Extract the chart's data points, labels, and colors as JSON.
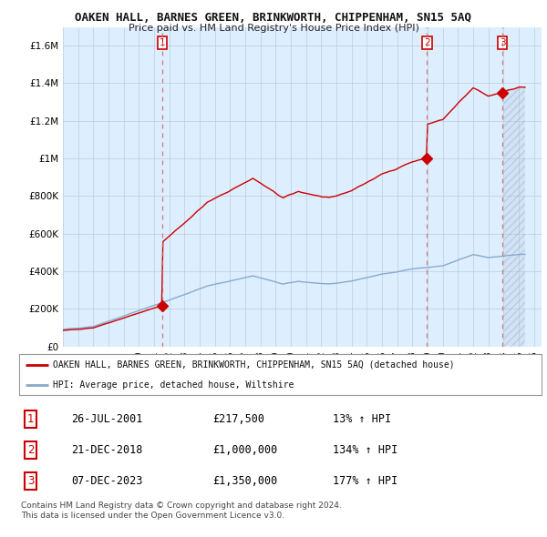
{
  "title": "OAKEN HALL, BARNES GREEN, BRINKWORTH, CHIPPENHAM, SN15 5AQ",
  "subtitle": "Price paid vs. HM Land Registry's House Price Index (HPI)",
  "transactions": [
    {
      "num": 1,
      "date": "26-JUL-2001",
      "price": 217500,
      "pct": "13%",
      "x_year": 2001.558
    },
    {
      "num": 2,
      "date": "21-DEC-2018",
      "price": 1000000,
      "pct": "134%",
      "x_year": 2018.97
    },
    {
      "num": 3,
      "date": "07-DEC-2023",
      "price": 1350000,
      "pct": "177%",
      "x_year": 2023.93
    }
  ],
  "legend_line1": "OAKEN HALL, BARNES GREEN, BRINKWORTH, CHIPPENHAM, SN15 5AQ (detached house)",
  "legend_line2": "HPI: Average price, detached house, Wiltshire",
  "footer1": "Contains HM Land Registry data © Crown copyright and database right 2024.",
  "footer2": "This data is licensed under the Open Government Licence v3.0.",
  "red_color": "#cc0000",
  "blue_color": "#88aacc",
  "dashed_color": "#cc6666",
  "bg_color": "#ddeeff",
  "plot_bg": "#ffffff",
  "grid_color": "#c0ccd8",
  "ylim": [
    0,
    1700000
  ],
  "xlim_start": 1995.0,
  "xlim_end": 2026.5,
  "yticks": [
    0,
    200000,
    400000,
    600000,
    800000,
    1000000,
    1200000,
    1400000,
    1600000
  ]
}
